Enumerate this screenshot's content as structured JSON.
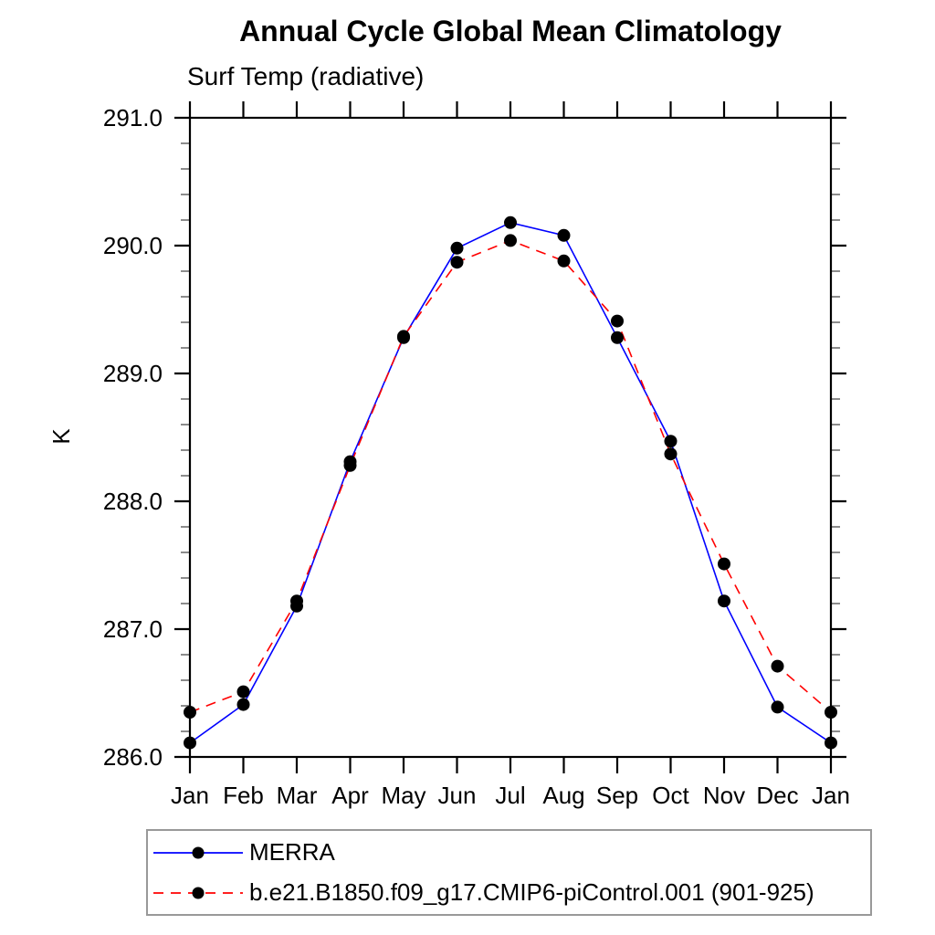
{
  "page": {
    "background": "#ffffff"
  },
  "chart_data": {
    "type": "line",
    "title": "Annual Cycle Global Mean Climatology",
    "subtitle": "Surf Temp (radiative)",
    "ylabel": "K",
    "xlabel": "",
    "categories": [
      "Jan",
      "Feb",
      "Mar",
      "Apr",
      "May",
      "Jun",
      "Jul",
      "Aug",
      "Sep",
      "Oct",
      "Nov",
      "Dec",
      "Jan"
    ],
    "ylim": [
      286.0,
      291.0
    ],
    "ytick_major_interval": 1.0,
    "ytick_minor_interval": 0.2,
    "ytick_labels": [
      "286.0",
      "287.0",
      "288.0",
      "289.0",
      "290.0",
      "291.0"
    ],
    "grid": false,
    "legend_position": "bottom",
    "marker": "filled-circle",
    "marker_color": "#000000",
    "series": [
      {
        "name": "MERRA",
        "color": "#0000ff",
        "line_style": "solid",
        "values": [
          286.11,
          286.41,
          287.18,
          288.31,
          289.28,
          289.98,
          290.18,
          290.08,
          289.28,
          288.47,
          287.22,
          286.39,
          286.11
        ]
      },
      {
        "name": "b.e21.B1850.f09_g17.CMIP6-piControl.001 (901-925)",
        "color": "#ff0000",
        "line_style": "dashed",
        "values": [
          286.35,
          286.51,
          287.22,
          288.28,
          289.29,
          289.87,
          290.04,
          289.88,
          289.41,
          288.37,
          287.51,
          286.71,
          286.35
        ]
      }
    ]
  }
}
